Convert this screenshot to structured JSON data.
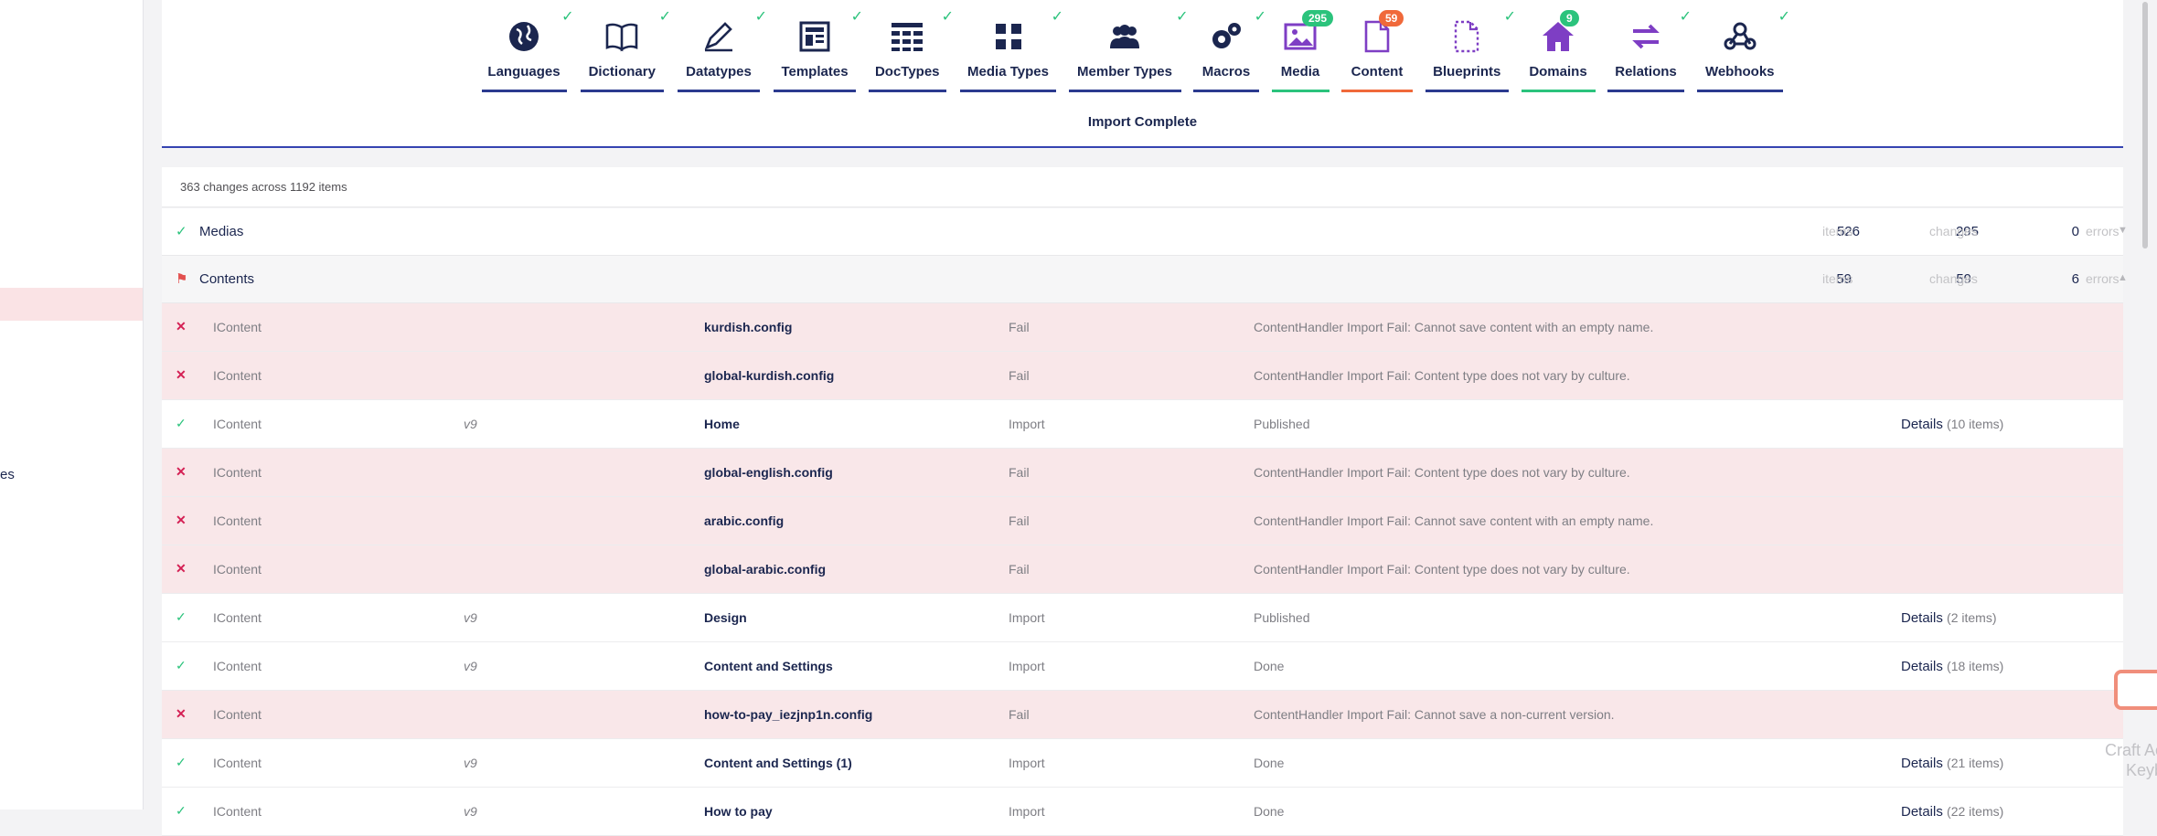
{
  "sidebar": {
    "partial_text": "es"
  },
  "tabs": [
    {
      "label": "Languages",
      "icon": "globe-icon",
      "status": "ok"
    },
    {
      "label": "Dictionary",
      "icon": "book-icon",
      "status": "ok"
    },
    {
      "label": "Datatypes",
      "icon": "pencil-icon",
      "status": "ok"
    },
    {
      "label": "Templates",
      "icon": "layout-icon",
      "status": "ok"
    },
    {
      "label": "DocTypes",
      "icon": "grid-icon",
      "status": "ok"
    },
    {
      "label": "Media Types",
      "icon": "blocks-icon",
      "status": "ok"
    },
    {
      "label": "Member Types",
      "icon": "users-icon",
      "status": "ok"
    },
    {
      "label": "Macros",
      "icon": "cogs-icon",
      "status": "ok"
    },
    {
      "label": "Media",
      "icon": "picture-icon",
      "badge": "295",
      "badge_color": "#2bc37c"
    },
    {
      "label": "Content",
      "icon": "document-icon",
      "badge": "59",
      "badge_color": "#f0693a"
    },
    {
      "label": "Blueprints",
      "icon": "dashed-document-icon",
      "status": "ok"
    },
    {
      "label": "Domains",
      "icon": "home-icon",
      "badge": "9",
      "badge_color": "#2bc37c"
    },
    {
      "label": "Relations",
      "icon": "arrows-icon",
      "status": "ok"
    },
    {
      "label": "Webhooks",
      "icon": "webhook-icon",
      "status": "ok"
    }
  ],
  "import_title": "Import Complete",
  "summary": "363 changes across 1192 items",
  "groups": {
    "medias": {
      "name": "Medias",
      "items": "526",
      "items_label": "items",
      "changes": "295",
      "changes_label": "changes",
      "errors": "0",
      "errors_label": "errors"
    },
    "contents": {
      "name": "Contents",
      "items": "59",
      "items_label": "items",
      "changes": "59",
      "changes_label": "changes",
      "errors": "6",
      "errors_label": "errors"
    }
  },
  "rows": [
    {
      "status": "fail",
      "type": "IContent",
      "version": "",
      "name": "kurdish.config",
      "change": "Fail",
      "message": "ContentHandler Import Fail: Cannot save content with an empty name.",
      "details": "",
      "details_count": ""
    },
    {
      "status": "fail",
      "type": "IContent",
      "version": "",
      "name": "global-kurdish.config",
      "change": "Fail",
      "message": "ContentHandler Import Fail: Content type does not vary by culture.",
      "details": "",
      "details_count": ""
    },
    {
      "status": "ok",
      "type": "IContent",
      "version": "v9",
      "name": "Home",
      "change": "Import",
      "message": "Published",
      "details": "Details",
      "details_count": "(10 items)"
    },
    {
      "status": "fail",
      "type": "IContent",
      "version": "",
      "name": "global-english.config",
      "change": "Fail",
      "message": "ContentHandler Import Fail: Content type does not vary by culture.",
      "details": "",
      "details_count": ""
    },
    {
      "status": "fail",
      "type": "IContent",
      "version": "",
      "name": "arabic.config",
      "change": "Fail",
      "message": "ContentHandler Import Fail: Cannot save content with an empty name.",
      "details": "",
      "details_count": ""
    },
    {
      "status": "fail",
      "type": "IContent",
      "version": "",
      "name": "global-arabic.config",
      "change": "Fail",
      "message": "ContentHandler Import Fail: Content type does not vary by culture.",
      "details": "",
      "details_count": ""
    },
    {
      "status": "ok",
      "type": "IContent",
      "version": "v9",
      "name": "Design",
      "change": "Import",
      "message": "Published",
      "details": "Details",
      "details_count": "(2 items)"
    },
    {
      "status": "ok",
      "type": "IContent",
      "version": "v9",
      "name": "Content and Settings",
      "change": "Import",
      "message": "Done",
      "details": "Details",
      "details_count": "(18 items)"
    },
    {
      "status": "fail",
      "type": "IContent",
      "version": "",
      "name": "how-to-pay_iezjnp1n.config",
      "change": "Fail",
      "message": "ContentHandler Import Fail: Cannot save a non-current version.",
      "details": "",
      "details_count": ""
    },
    {
      "status": "ok",
      "type": "IContent",
      "version": "v9",
      "name": "Content and Settings (1)",
      "change": "Import",
      "message": "Done",
      "details": "Details",
      "details_count": "(21 items)"
    },
    {
      "status": "ok",
      "type": "IContent",
      "version": "v9",
      "name": "How to pay",
      "change": "Import",
      "message": "Done",
      "details": "Details",
      "details_count": "(22 items)"
    }
  ],
  "overlay": {
    "text": "Craft Ac\nKeyb"
  },
  "colors": {
    "ok": "#2bc37c",
    "fail": "#d42054",
    "fail_row_bg": "#f9e7e9",
    "navy": "#1b264f",
    "content_underline": "#f0693a",
    "media_underline": "#2bc37c"
  }
}
